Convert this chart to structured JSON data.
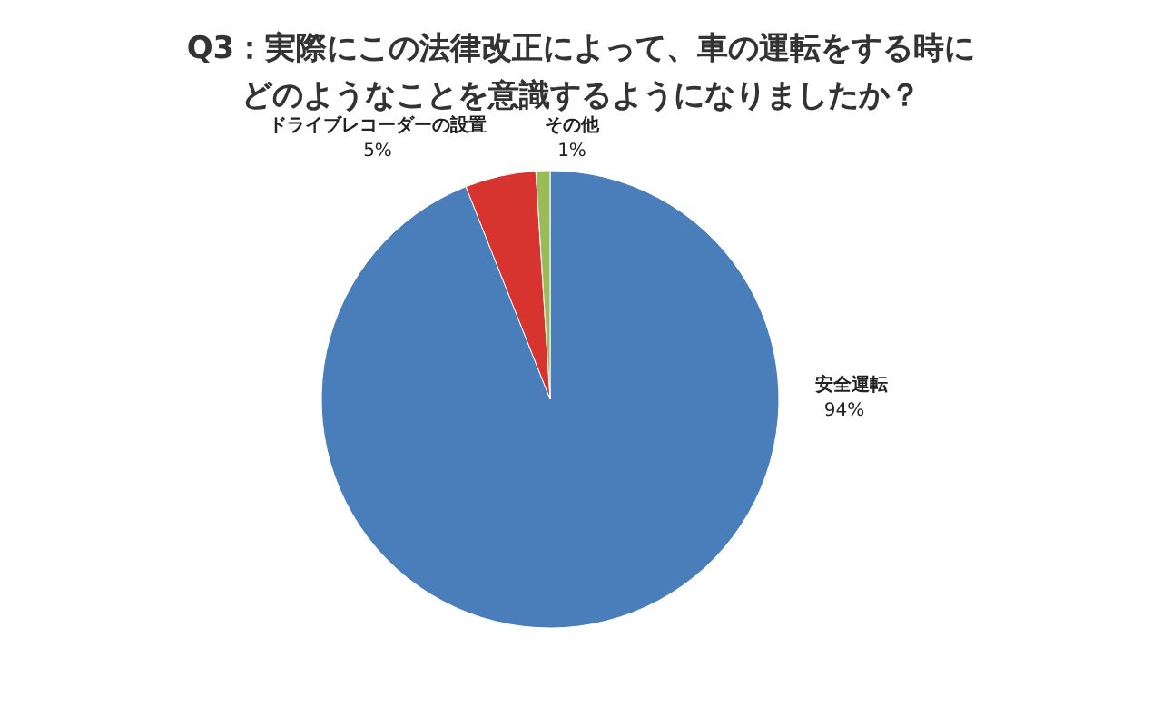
{
  "chart_data": {
    "type": "pie",
    "title": "Q3：実際にこの法律改正によって、車の運転をする時にどのようなことを意識するようになりましたか？",
    "categories": [
      "安全運転",
      "ドライブレコーダーの設置",
      "その他"
    ],
    "values": [
      94,
      5,
      1
    ],
    "value_labels": [
      "94%",
      "5%",
      "1%"
    ],
    "colors": [
      "#4a7ebb",
      "#d7342f",
      "#9bbb59"
    ],
    "legend": false
  }
}
